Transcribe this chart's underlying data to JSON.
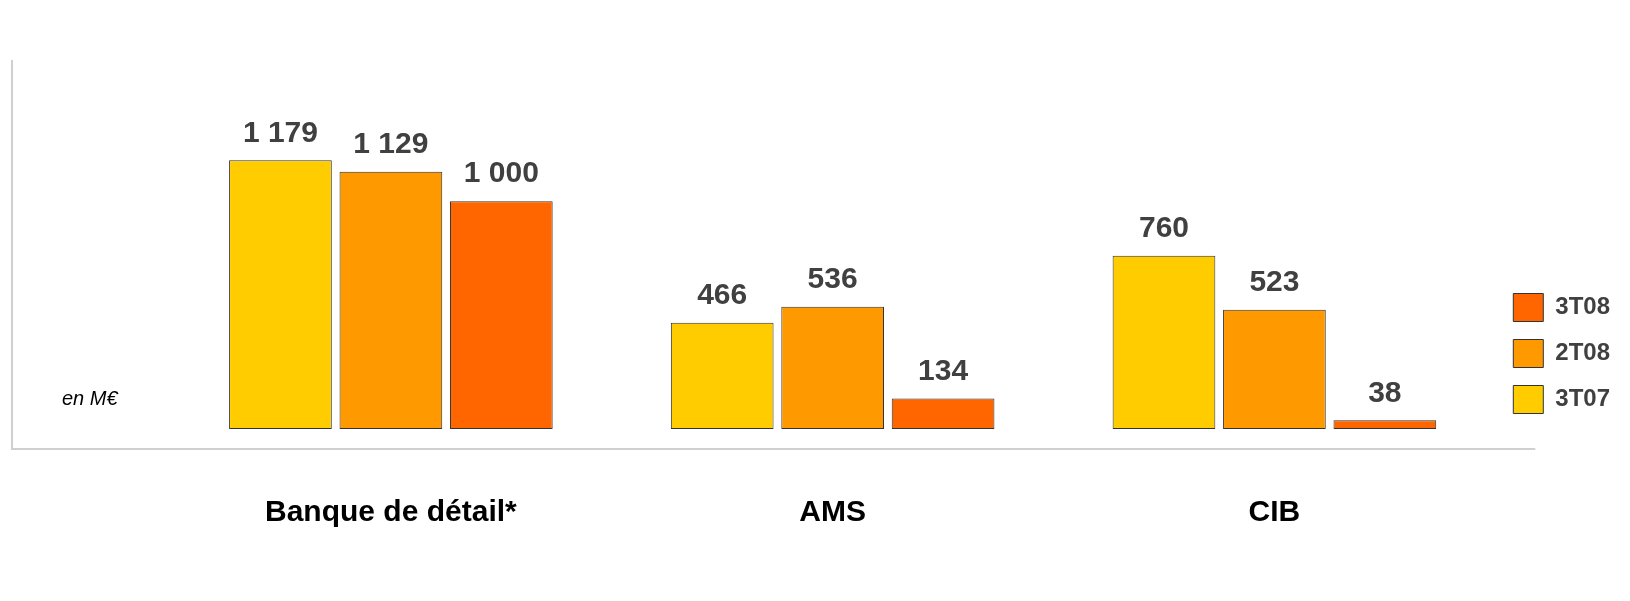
{
  "chart_data": {
    "type": "bar",
    "categories": [
      "Banque de détail*",
      "AMS",
      "CIB"
    ],
    "series": [
      {
        "name": "3T07",
        "color": "#ffcc00",
        "values": [
          1179,
          466,
          760
        ]
      },
      {
        "name": "2T08",
        "color": "#ff9900",
        "values": [
          1129,
          536,
          523
        ]
      },
      {
        "name": "3T08",
        "color": "#ff6600",
        "values": [
          1000,
          134,
          38
        ]
      }
    ],
    "data_labels": true,
    "legend": "right",
    "grid": false,
    "tick_labels": "x",
    "annotations": [
      "en M€"
    ]
  }
}
